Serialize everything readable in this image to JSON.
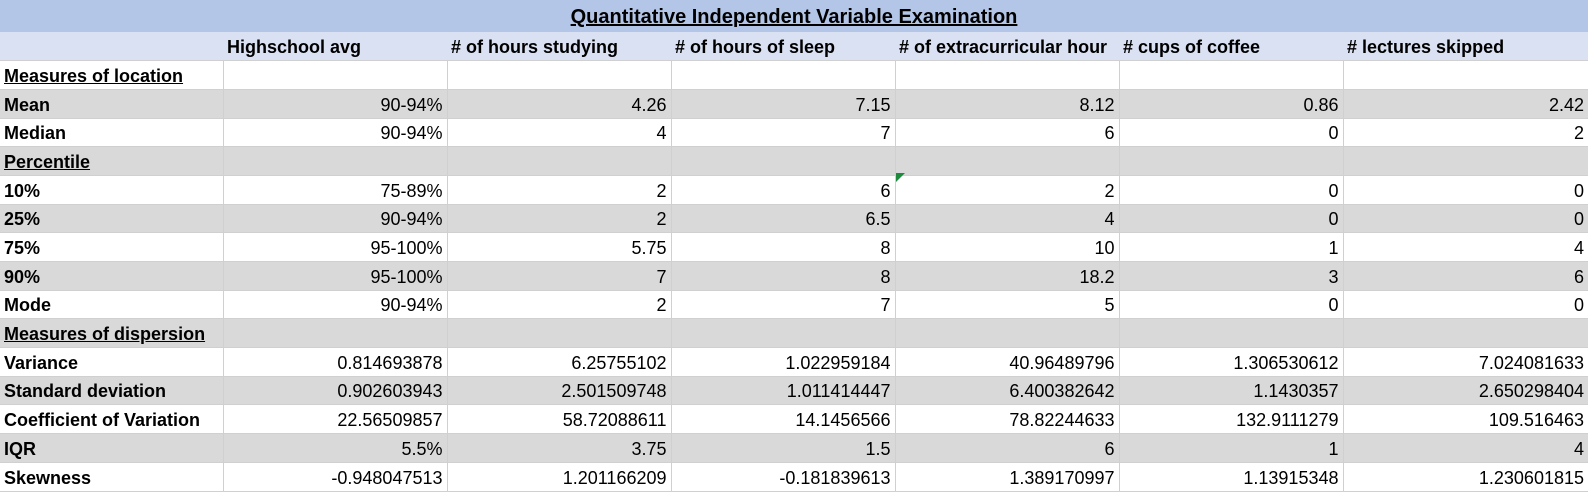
{
  "title": "Quantitative Independent Variable Examination",
  "columns": [
    "",
    "Highschool avg",
    "# of hours studying",
    "# of hours of sleep",
    "# of extracurricular hour",
    "# cups of coffee",
    "# lectures skipped"
  ],
  "rows": [
    {
      "type": "section",
      "label": "Measures of location",
      "values": [
        "",
        "",
        "",
        "",
        "",
        ""
      ],
      "shade": "white"
    },
    {
      "type": "data",
      "label": "Mean",
      "values": [
        "90-94%",
        "4.26",
        "7.15",
        "8.12",
        "0.86",
        "2.42"
      ],
      "shade": "grey"
    },
    {
      "type": "data",
      "label": "Median",
      "values": [
        "90-94%",
        "4",
        "7",
        "6",
        "0",
        "2"
      ],
      "shade": "white"
    },
    {
      "type": "section",
      "label": "Percentile ",
      "values": [
        "",
        "",
        "",
        "",
        "",
        ""
      ],
      "shade": "grey"
    },
    {
      "type": "data",
      "label": "10%",
      "values": [
        "75-89%",
        "2",
        "6",
        "2",
        "0",
        "0"
      ],
      "shade": "white"
    },
    {
      "type": "data",
      "label": "25%",
      "values": [
        "90-94%",
        "2",
        "6.5",
        "4",
        "0",
        "0"
      ],
      "shade": "grey"
    },
    {
      "type": "data",
      "label": "75%",
      "values": [
        "95-100%",
        "5.75",
        "8",
        "10",
        "1",
        "4"
      ],
      "shade": "white"
    },
    {
      "type": "data",
      "label": "90%",
      "values": [
        "95-100%",
        "7",
        "8",
        "18.2",
        "3",
        "6"
      ],
      "shade": "grey"
    },
    {
      "type": "data",
      "label": "Mode",
      "values": [
        "90-94%",
        "2",
        "7",
        "5",
        "0",
        "0"
      ],
      "shade": "white"
    },
    {
      "type": "section",
      "label": "Measures of dispersion",
      "values": [
        "",
        "",
        "",
        "",
        "",
        ""
      ],
      "shade": "grey"
    },
    {
      "type": "data",
      "label": "Variance",
      "values": [
        "0.814693878",
        "6.25755102",
        "1.022959184",
        "40.96489796",
        "1.306530612",
        "7.024081633"
      ],
      "shade": "white"
    },
    {
      "type": "data",
      "label": "Standard deviation",
      "values": [
        "0.902603943",
        "2.501509748",
        "1.011414447",
        "6.400382642",
        "1.1430357",
        "2.650298404"
      ],
      "shade": "grey"
    },
    {
      "type": "data",
      "label": "Coefficient of Variation",
      "values": [
        "22.56509857",
        "58.72088611",
        "14.1456566",
        "78.82244633",
        "132.9111279",
        "109.516463"
      ],
      "shade": "white"
    },
    {
      "type": "data",
      "label": "IQR",
      "values": [
        "5.5%",
        "3.75",
        "1.5",
        "6",
        "1",
        "4"
      ],
      "shade": "grey"
    },
    {
      "type": "data",
      "label": "Skewness",
      "values": [
        "-0.948047513",
        "1.201166209",
        "-0.181839613",
        "1.389170997",
        "1.13915348",
        "1.230601815"
      ],
      "shade": "white"
    }
  ]
}
